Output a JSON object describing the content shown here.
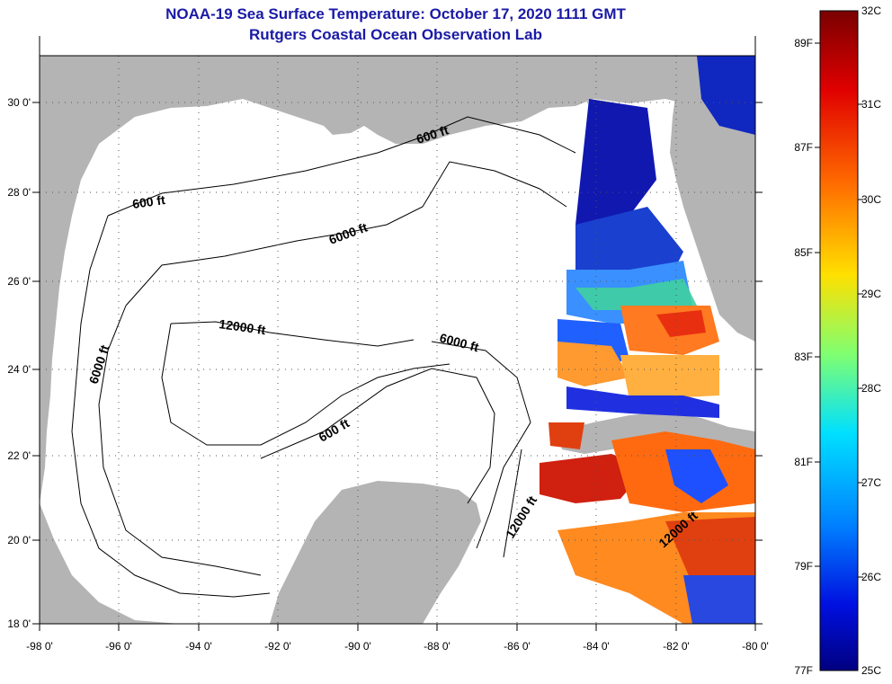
{
  "header": {
    "title": "NOAA-19 Sea Surface Temperature:  October 17, 2020 1111 GMT",
    "subtitle": "Rutgers Coastal Ocean Observation Lab"
  },
  "map": {
    "lon_ticks": [
      "-98 0'",
      "-96 0'",
      "-94 0'",
      "-92 0'",
      "-90 0'",
      "-88 0'",
      "-86 0'",
      "-84 0'",
      "-82 0'",
      "-80 0'"
    ],
    "lat_ticks": [
      "30 0'",
      "28 0'",
      "26 0'",
      "24 0'",
      "22 0'",
      "20 0'",
      "18 0'"
    ],
    "lon_range": [
      -98,
      -80
    ],
    "lat_range": [
      18,
      31
    ],
    "contour_labels": [
      "600 ft",
      "600 ft",
      "600 ft",
      "6000 ft",
      "6000 ft",
      "6000 ft",
      "12000 ft",
      "12000 ft",
      "12000 ft"
    ],
    "colors": {
      "land": "#b4b4b4",
      "ocean_nodata": "#ffffff",
      "contour": "#000000"
    }
  },
  "colorbar": {
    "fahrenheit_labels": [
      "89F",
      "87F",
      "85F",
      "83F",
      "81F",
      "79F",
      "77F"
    ],
    "celsius_labels": [
      "32C",
      "31C",
      "30C",
      "29C",
      "28C",
      "27C",
      "26C",
      "25C"
    ],
    "range_c": [
      25,
      32
    ],
    "colors": [
      "#800000",
      "#ff0000",
      "#ff8000",
      "#ffff00",
      "#80ff80",
      "#00ffff",
      "#0080ff",
      "#0000ff",
      "#000080"
    ]
  }
}
